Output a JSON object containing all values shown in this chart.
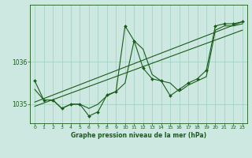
{
  "background_color": "#cde8e0",
  "grid_color": "#9ecfbf",
  "line_color": "#1a5c1a",
  "title": "Graphe pression niveau de la mer (hPa)",
  "xlim": [
    -0.5,
    23.5
  ],
  "ylim": [
    1034.55,
    1037.35
  ],
  "yticks": [
    1035,
    1036
  ],
  "xticks": [
    0,
    1,
    2,
    3,
    4,
    5,
    6,
    7,
    8,
    9,
    10,
    11,
    12,
    13,
    14,
    15,
    16,
    17,
    18,
    19,
    20,
    21,
    22,
    23
  ],
  "series_main": {
    "x": [
      0,
      1,
      2,
      3,
      4,
      5,
      6,
      7,
      8,
      9,
      10,
      11,
      12,
      13,
      14,
      15,
      16,
      17,
      18,
      19,
      20,
      21,
      22,
      23
    ],
    "y": [
      1035.55,
      1035.1,
      1035.1,
      1034.9,
      1035.0,
      1035.0,
      1034.72,
      1034.82,
      1035.22,
      1035.3,
      1036.85,
      1036.5,
      1035.85,
      1035.6,
      1035.55,
      1035.2,
      1035.35,
      1035.5,
      1035.6,
      1035.8,
      1036.85,
      1036.9,
      1036.9,
      1036.95
    ]
  },
  "series_trend1": {
    "x": [
      0,
      23
    ],
    "y": [
      1034.95,
      1036.75
    ]
  },
  "series_trend2": {
    "x": [
      0,
      23
    ],
    "y": [
      1035.05,
      1036.95
    ]
  },
  "series_smooth": {
    "x": [
      0,
      1,
      2,
      3,
      4,
      5,
      6,
      7,
      8,
      9,
      10,
      11,
      12,
      13,
      14,
      15,
      16,
      17,
      18,
      19,
      20,
      21,
      22,
      23
    ],
    "y": [
      1035.35,
      1035.1,
      1035.1,
      1034.9,
      1035.0,
      1035.0,
      1034.9,
      1035.0,
      1035.2,
      1035.3,
      1035.5,
      1036.5,
      1036.3,
      1035.7,
      1035.55,
      1035.5,
      1035.3,
      1035.45,
      1035.55,
      1035.65,
      1036.75,
      1036.85,
      1036.85,
      1036.9
    ]
  }
}
